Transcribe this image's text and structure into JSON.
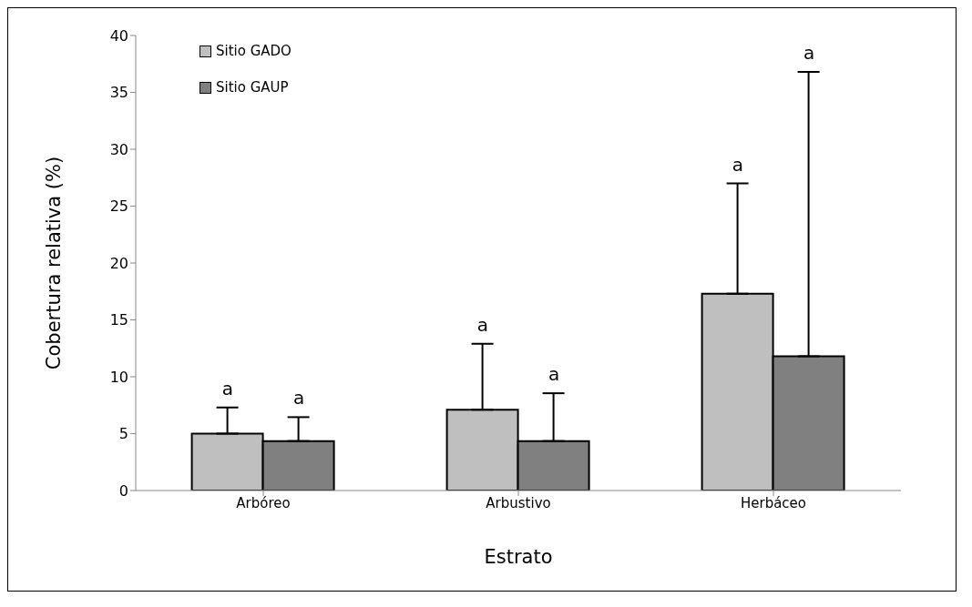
{
  "chart_data": {
    "type": "bar",
    "xlabel": "Estrato",
    "ylabel": "Cobertura relativa (%)",
    "categories": [
      "Arbóreo",
      "Arbustivo",
      "Herbáceo"
    ],
    "series": [
      {
        "name": "Sitio GADO",
        "color": "#bfbfbf",
        "values": [
          5.0,
          7.1,
          17.3
        ],
        "errors": [
          [
            5.0,
            7.3
          ],
          [
            7.1,
            12.9
          ],
          [
            17.3,
            27.0
          ]
        ]
      },
      {
        "name": "Sitio GAUP",
        "color": "#808080",
        "values": [
          4.35,
          4.35,
          11.8
        ],
        "errors": [
          [
            4.35,
            6.45
          ],
          [
            4.35,
            8.55
          ],
          [
            11.8,
            36.8
          ]
        ]
      }
    ],
    "annotations": [
      "a",
      "a",
      "a",
      "a",
      "a",
      "a"
    ],
    "ylim": [
      0,
      40
    ],
    "yticks": [
      0,
      5,
      10,
      15,
      20,
      25,
      30,
      35,
      40
    ],
    "grid": false,
    "legend": "top left"
  }
}
